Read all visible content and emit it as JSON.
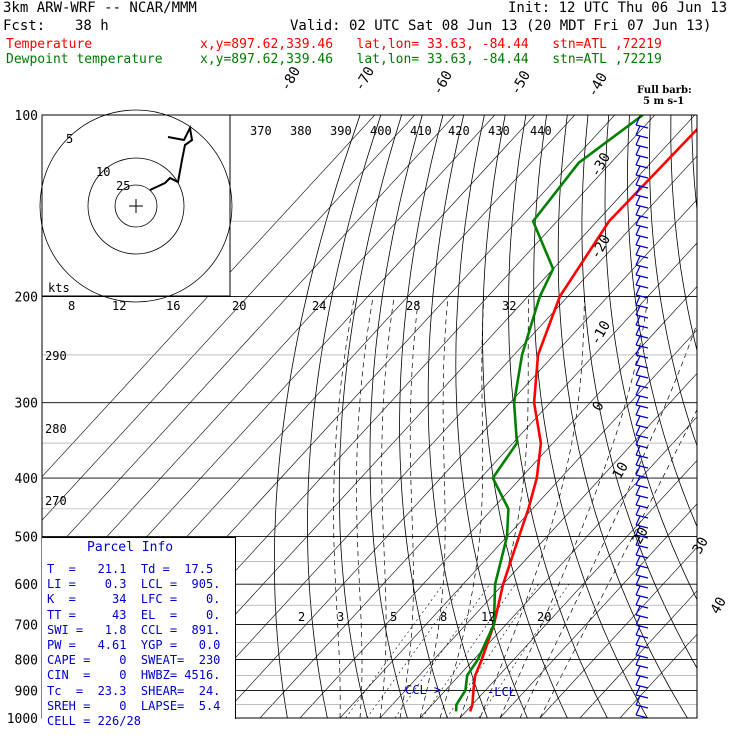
{
  "header": {
    "model": "3km ARW-WRF -- NCAR/MMM",
    "init": "Init: 12 UTC Thu 06 Jun 13",
    "fcst_label": "Fcst:",
    "fcst_value": "38 h",
    "valid": "Valid: 02 UTC Sat 08 Jun 13 (20 MDT Fri 07 Jun 13)",
    "temp_label": "Temperature",
    "dew_label": "Dewpoint temperature",
    "temp_loc": "x,y=897.62,339.46   lat,lon= 33.63, -84.44   stn=ATL ,72219",
    "dew_loc": "x,y=897.62,339.46   lat,lon= 33.63, -84.44   stn=ATL ,72219"
  },
  "colors": {
    "temperature": "#ff0000",
    "dewpoint": "#008000",
    "text_blue": "#0000cc",
    "barbs": "#0000cc"
  },
  "chart_data": {
    "type": "line",
    "pressure_levels": [
      100,
      200,
      300,
      400,
      500,
      600,
      700,
      800,
      900,
      1000
    ],
    "isotherm_labels": [
      "-80",
      "-70",
      "-60",
      "-50",
      "-40",
      "-30",
      "-20",
      "-10",
      "0",
      "10",
      "20",
      "30",
      "40"
    ],
    "theta_labels": [
      "370",
      "380",
      "390",
      "400",
      "410",
      "420",
      "430",
      "440",
      "290",
      "280",
      "270"
    ],
    "mixing_ratio_labels": [
      "2",
      "3",
      "5",
      "8",
      "12",
      "20"
    ],
    "hodograph_labels": [
      "5",
      "10",
      "25",
      "kts",
      "8",
      "12",
      "16",
      "20",
      "24",
      "28",
      "32"
    ],
    "wind_legend": [
      "Full barb:",
      "5 m s-1"
    ],
    "lcl_label": "LCL",
    "ccl_label": "CCL",
    "series": [
      {
        "name": "Temperature",
        "points": [
          [
            100,
            -56
          ],
          [
            150,
            -57
          ],
          [
            200,
            -52
          ],
          [
            250,
            -44
          ],
          [
            300,
            -34
          ],
          [
            350,
            -23
          ],
          [
            400,
            -16
          ],
          [
            450,
            -11
          ],
          [
            500,
            -7
          ],
          [
            600,
            0
          ],
          [
            700,
            7
          ],
          [
            800,
            12
          ],
          [
            850,
            14
          ],
          [
            900,
            17
          ],
          [
            950,
            20
          ],
          [
            975,
            21
          ]
        ]
      },
      {
        "name": "Dewpoint temperature",
        "points": [
          [
            100,
            -73
          ],
          [
            120,
            -78
          ],
          [
            150,
            -76
          ],
          [
            180,
            -60
          ],
          [
            200,
            -57
          ],
          [
            250,
            -48
          ],
          [
            300,
            -39
          ],
          [
            350,
            -29
          ],
          [
            400,
            -27
          ],
          [
            450,
            -16
          ],
          [
            500,
            -10
          ],
          [
            600,
            -2
          ],
          [
            700,
            7
          ],
          [
            800,
            11
          ],
          [
            850,
            12
          ],
          [
            900,
            15
          ],
          [
            950,
            16
          ],
          [
            975,
            17.5
          ]
        ]
      }
    ]
  },
  "parcel_info": {
    "title": "Parcel Info",
    "rows": [
      "T  =   21.1  Td =  17.5",
      "LI =    0.3  LCL =  905.",
      "K  =     34  LFC =    0.",
      "TT =     43  EL  =    0.",
      "SWI =   1.8  CCL =  891.",
      "PW =   4.61  YGP =   0.0",
      "CAPE =    0  SWEAT=  230",
      "CIN  =    0  HWBZ= 4516.",
      "Tc  =  23.3  SHEAR=  24.",
      "SREH =    0  LAPSE=  5.4",
      "CELL = 226/28"
    ]
  }
}
